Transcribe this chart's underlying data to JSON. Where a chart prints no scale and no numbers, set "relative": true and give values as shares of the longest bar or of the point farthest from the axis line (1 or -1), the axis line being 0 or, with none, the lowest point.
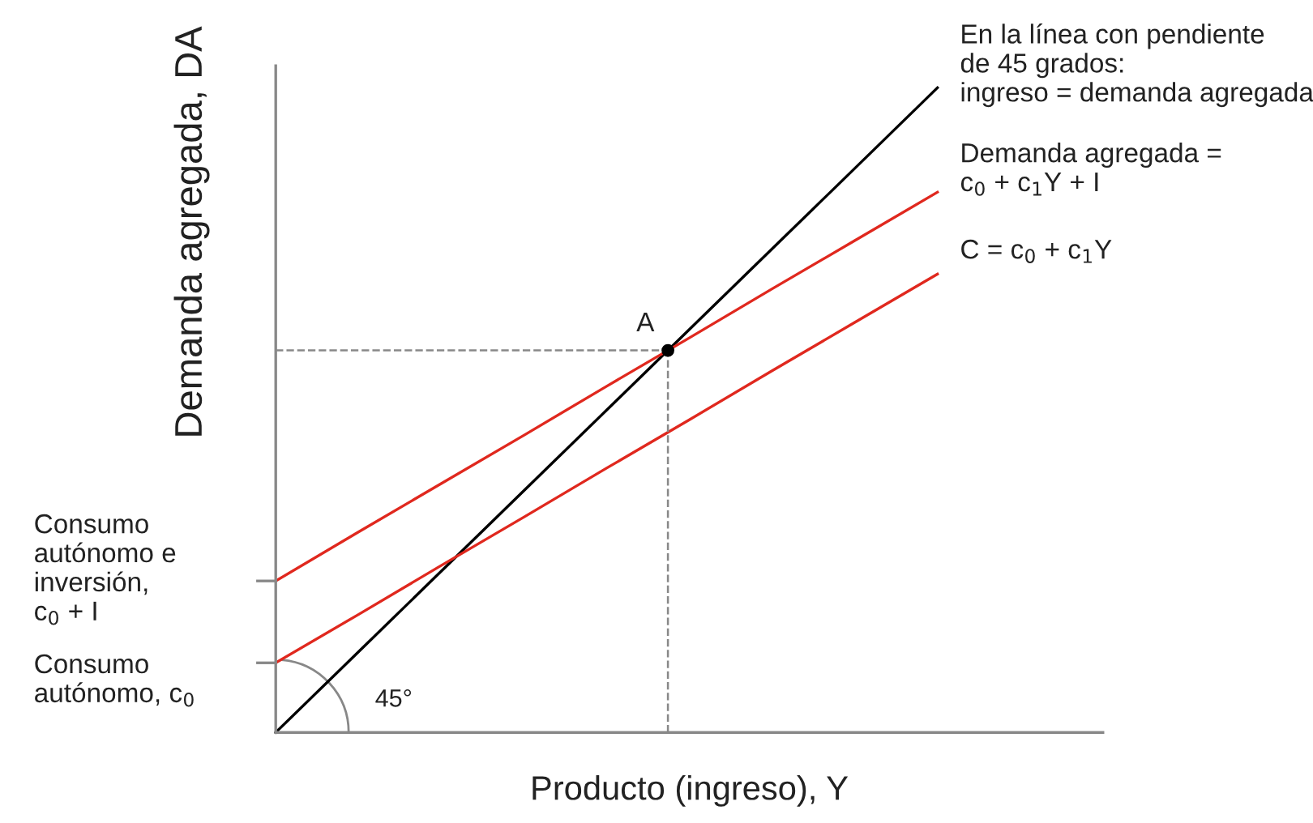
{
  "chart_data": {
    "type": "line",
    "relative": true,
    "xlabel": "Producto (ingreso), Y",
    "ylabel": "Demanda agregada, DA",
    "categories": [
      null,
      null,
      null,
      null,
      null,
      null,
      null,
      null,
      null,
      null,
      null
    ],
    "series": [
      {
        "name": "En la línea con pendiente\nde 45 grados:\ningreso = demanda agregada",
        "color": "#000000",
        "values": [
          0,
          0.125,
          0.25,
          0.375,
          0.5,
          0.625,
          0.75,
          0.875,
          1,
          null,
          null
        ]
      },
      {
        "name": "Demanda agregada =\nc$_{0}$ + c$_{1}$Y + I",
        "color": "#e0281e",
        "values": [
          0.235,
          0.311,
          0.386,
          0.461,
          0.537,
          0.612,
          0.688,
          0.763,
          0.838,
          null,
          null
        ]
      },
      {
        "name": "C = c$_{0}$ + c$_{1}$Y",
        "color": "#e0281e",
        "values": [
          0.108,
          0.183,
          0.259,
          0.334,
          0.41,
          0.485,
          0.561,
          0.636,
          0.711,
          null,
          null
        ]
      }
    ],
    "annotations": [
      "A",
      "45°",
      "Consumo\nautónomo e\ninversión,\nc$_{0}$ + I",
      "Consumo\nautónomo, c$_{0}$"
    ]
  }
}
